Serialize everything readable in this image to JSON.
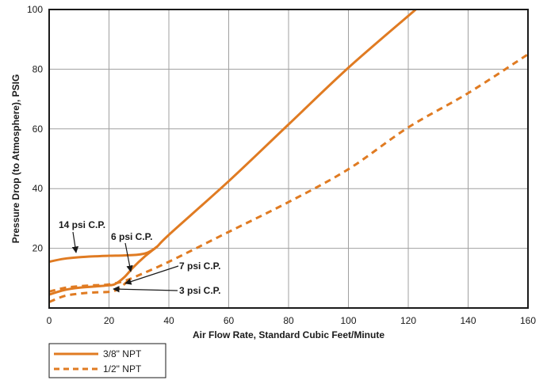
{
  "chart_data": {
    "type": "line",
    "title": "",
    "xlabel": "Air Flow Rate, Standard Cubic Feet/Minute",
    "ylabel": "Pressure Drop (to Atmosphere), PSIG",
    "xlim": [
      0,
      160
    ],
    "ylim": [
      0,
      100
    ],
    "x_ticks": [
      "0",
      "20",
      "40",
      "60",
      "80",
      "100",
      "120",
      "140",
      "160"
    ],
    "y_ticks": [
      "20",
      "40",
      "60",
      "80",
      "100"
    ],
    "grid": true,
    "legend_position": "bottom-left",
    "colors": {
      "line": "#e07b22",
      "grid": "#a0a0a0",
      "frame": "#1a1a1a"
    },
    "series": [
      {
        "name": "3/8\" NPT",
        "style": "solid",
        "curves": [
          {
            "label": "14 psi C.P.",
            "x": [
              0,
              5,
              10,
              15,
              20,
              25,
              30,
              33,
              36,
              40,
              60,
              80,
              100,
              122.5
            ],
            "y": [
              15.5,
              16.5,
              17.0,
              17.3,
              17.5,
              17.6,
              17.9,
              18.6,
              20.5,
              24.5,
              42.5,
              61.5,
              80.5,
              100
            ]
          },
          {
            "label": "6 psi C.P.",
            "x": [
              0,
              5,
              10,
              15,
              20,
              22,
              25,
              28,
              32,
              36
            ],
            "y": [
              4.5,
              6.0,
              6.8,
              7.2,
              7.6,
              8.0,
              10.2,
              13.5,
              17.3,
              20.5
            ]
          }
        ]
      },
      {
        "name": "1/2\" NPT",
        "style": "dashed",
        "curves": [
          {
            "label": "7 psi C.P.",
            "x": [
              0,
              5,
              10,
              15,
              20,
              25,
              30,
              40,
              60,
              80,
              100,
              120,
              140,
              160
            ],
            "y": [
              5.5,
              6.7,
              7.3,
              7.6,
              7.9,
              9.0,
              11.0,
              15.5,
              25.5,
              35.5,
              46.5,
              60.5,
              72.0,
              85.0
            ]
          },
          {
            "label": "3 psi C.P.",
            "x": [
              0,
              5,
              10,
              15,
              20,
              22,
              24,
              26
            ],
            "y": [
              2.0,
              4.0,
              4.8,
              5.2,
              5.4,
              5.8,
              7.0,
              8.8
            ]
          }
        ]
      }
    ],
    "annotations": [
      {
        "text": "14 psi C.P.",
        "arrow_to": [
          10,
          17.0
        ]
      },
      {
        "text": "6 psi C.P.",
        "arrow_to": [
          28,
          12.5
        ]
      },
      {
        "text": "7 psi C.P.",
        "arrow_to": [
          25,
          9.0
        ]
      },
      {
        "text": "3 psi C.P.",
        "arrow_to": [
          21,
          6.0
        ]
      }
    ],
    "legend": [
      {
        "label": "3/8\" NPT",
        "style": "solid"
      },
      {
        "label": "1/2\" NPT",
        "style": "dashed"
      }
    ]
  }
}
